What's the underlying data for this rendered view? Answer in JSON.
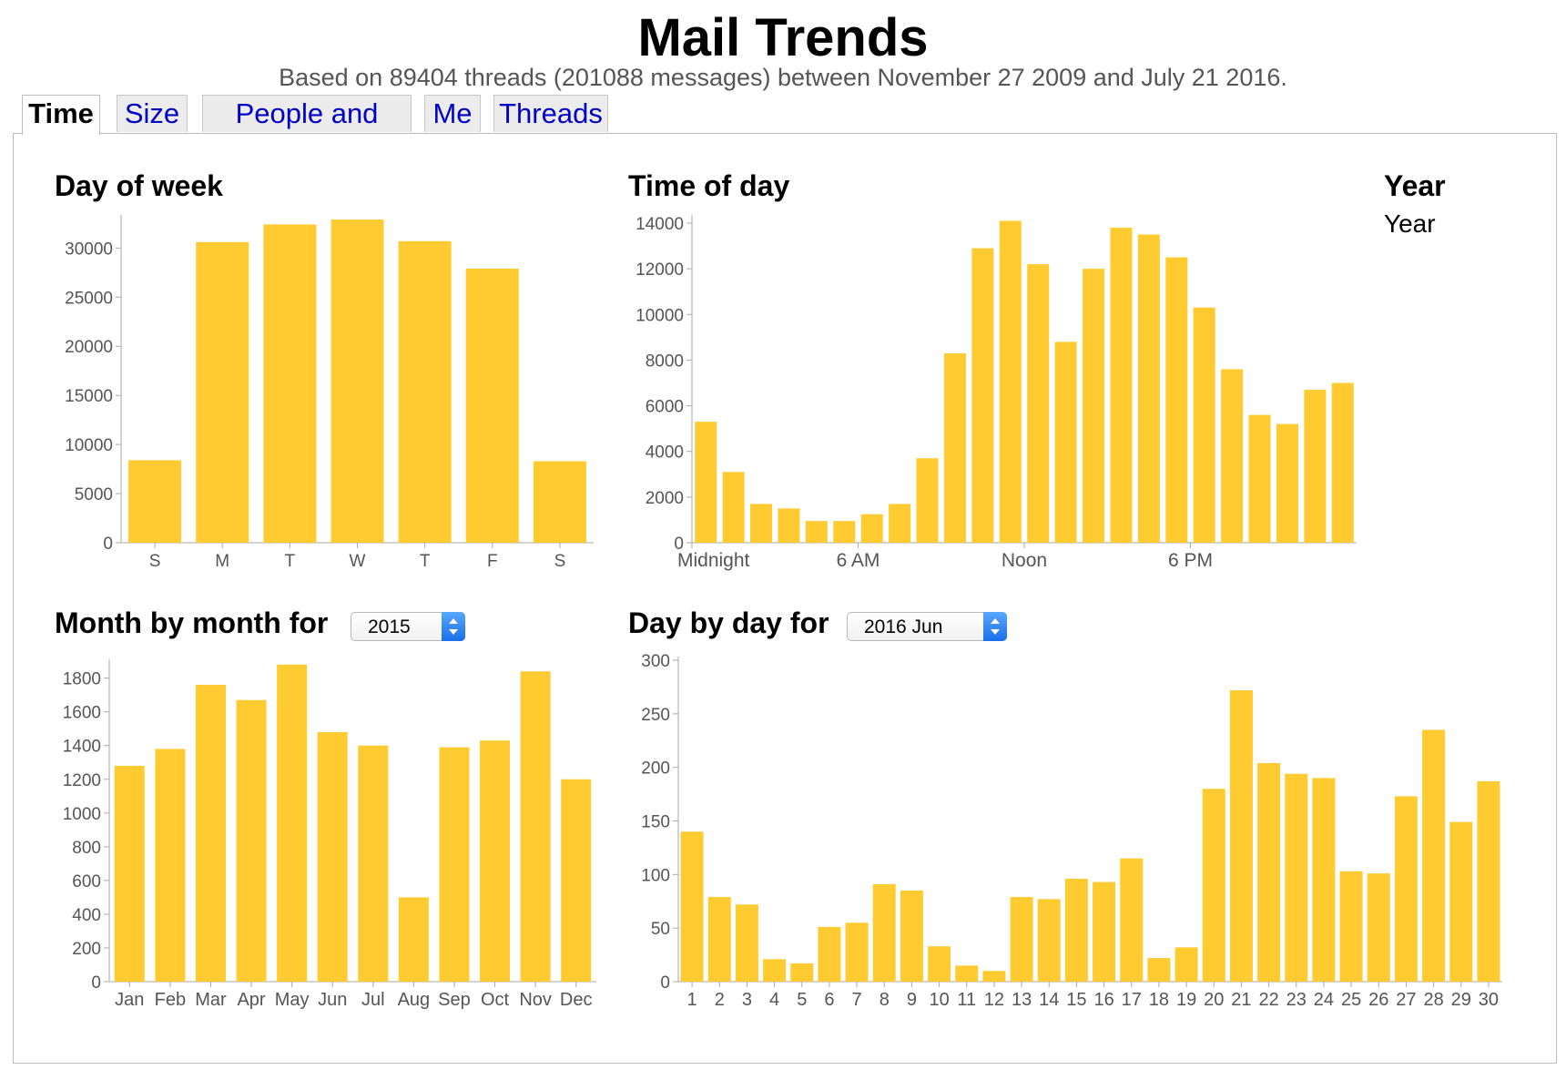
{
  "header": {
    "title": "Mail Trends",
    "subtitle": "Based on 89404 threads (201088 messages) between November 27 2009 and July 21 2016."
  },
  "tabs": [
    {
      "label": "Time",
      "active": true
    },
    {
      "label": "Size",
      "active": false
    },
    {
      "label": "People and Lists",
      "active": false
    },
    {
      "label": "Me",
      "active": false
    },
    {
      "label": "Threads",
      "active": false
    }
  ],
  "year_section": {
    "heading": "Year",
    "label": "Year"
  },
  "colors": {
    "bar": "#ffcb30",
    "axis": "#aaaaaa",
    "tick_text": "#555555",
    "tab_link": "#0000c8"
  },
  "chart_data": [
    {
      "id": "day_of_week",
      "type": "bar",
      "title": "Day of week",
      "categories": [
        "S",
        "M",
        "T",
        "W",
        "T",
        "F",
        "S"
      ],
      "values": [
        8400,
        30600,
        32400,
        32900,
        30700,
        27900,
        8300
      ],
      "ylim": [
        0,
        33000
      ],
      "yticks": [
        0,
        5000,
        10000,
        15000,
        20000,
        25000,
        30000
      ]
    },
    {
      "id": "time_of_day",
      "type": "bar",
      "title": "Time of day",
      "categories": [
        "0",
        "1",
        "2",
        "3",
        "4",
        "5",
        "6",
        "7",
        "8",
        "9",
        "10",
        "11",
        "12",
        "13",
        "14",
        "15",
        "16",
        "17",
        "18",
        "19",
        "20",
        "21",
        "22",
        "23"
      ],
      "x_tick_labels": [
        {
          "index": 0,
          "label": "Midnight"
        },
        {
          "index": 6,
          "label": "6 AM"
        },
        {
          "index": 12,
          "label": "Noon"
        },
        {
          "index": 18,
          "label": "6 PM"
        }
      ],
      "values": [
        5300,
        3100,
        1700,
        1500,
        950,
        950,
        1250,
        1700,
        3700,
        8300,
        12900,
        14100,
        12200,
        8800,
        12000,
        13800,
        13500,
        12500,
        10300,
        7600,
        5600,
        5200,
        6700,
        7000
      ],
      "ylim": [
        0,
        14200
      ],
      "yticks": [
        0,
        2000,
        4000,
        6000,
        8000,
        10000,
        12000,
        14000
      ]
    },
    {
      "id": "month_by_month",
      "type": "bar",
      "title": "Month by month for",
      "selector_value": "2015",
      "categories": [
        "Jan",
        "Feb",
        "Mar",
        "Apr",
        "May",
        "Jun",
        "Jul",
        "Aug",
        "Sep",
        "Oct",
        "Nov",
        "Dec"
      ],
      "values": [
        1280,
        1380,
        1760,
        1670,
        1880,
        1480,
        1400,
        500,
        1390,
        1430,
        1840,
        1200
      ],
      "ylim": [
        0,
        1890
      ],
      "yticks": [
        0,
        200,
        400,
        600,
        800,
        1000,
        1200,
        1400,
        1600,
        1800
      ]
    },
    {
      "id": "day_by_day",
      "type": "bar",
      "title": "Day by day for",
      "selector_value": "2016 Jun",
      "categories": [
        "1",
        "2",
        "3",
        "4",
        "5",
        "6",
        "7",
        "8",
        "9",
        "10",
        "11",
        "12",
        "13",
        "14",
        "15",
        "16",
        "17",
        "18",
        "19",
        "20",
        "21",
        "22",
        "23",
        "24",
        "25",
        "26",
        "27",
        "28",
        "29",
        "30"
      ],
      "values": [
        140,
        79,
        72,
        21,
        17,
        51,
        55,
        91,
        85,
        33,
        15,
        10,
        79,
        77,
        96,
        93,
        115,
        22,
        32,
        180,
        272,
        204,
        194,
        190,
        103,
        101,
        173,
        235,
        149,
        187
      ],
      "ylim": [
        0,
        300
      ],
      "yticks": [
        0,
        50,
        100,
        150,
        200,
        250,
        300
      ]
    }
  ]
}
